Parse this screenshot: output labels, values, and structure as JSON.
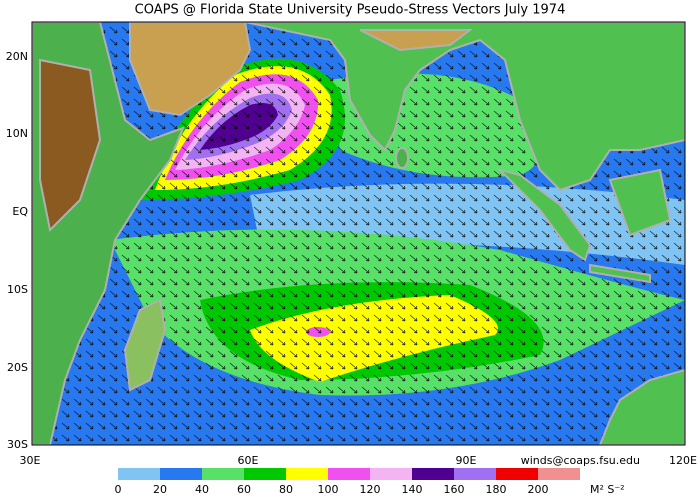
{
  "title": "COAPS @ Florida State University Pseudo-Stress Vectors  July 1974",
  "map": {
    "lat_labels": [
      "20N",
      "10N",
      "EQ",
      "10S",
      "20S",
      "30S"
    ],
    "lon_labels": [
      "30E",
      "60E",
      "90E",
      "120E"
    ]
  },
  "credit": "winds@coaps.fsu.edu",
  "colorbar": {
    "ticks": [
      0,
      20,
      40,
      60,
      80,
      100,
      120,
      140,
      160,
      180,
      200
    ],
    "colors": [
      "#80c4f4",
      "#2878f0",
      "#58e068",
      "#00c800",
      "#ffff00",
      "#f050f0",
      "#f4b4f4",
      "#500090",
      "#a070f0",
      "#f00000",
      "#f09090"
    ],
    "unit": "M² S⁻²"
  }
}
